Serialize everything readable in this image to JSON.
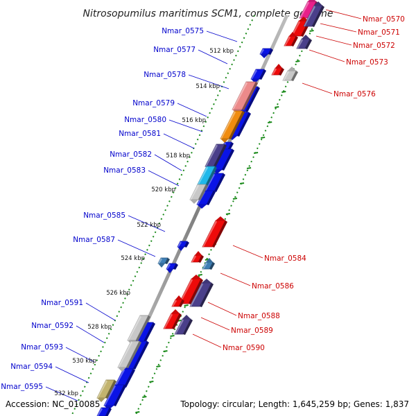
{
  "header": {
    "title": "Nitrosopumilus maritimus SCM1, complete genome"
  },
  "footer": {
    "accession": "Accession: NC_010085",
    "topology": "Topology: circular; Length: 1,645,259 bp; Genes: 1,837"
  },
  "scale_labels": [
    "512 kbp",
    "514 kbp",
    "516 kbp",
    "518 kbp",
    "520 kbp",
    "522 kbp",
    "524 kbp",
    "526 kbp",
    "528 kbp",
    "530 kbp",
    "532 kbp"
  ],
  "genes_forward": [
    "Nmar_0575",
    "Nmar_0577",
    "Nmar_0578",
    "Nmar_0579",
    "Nmar_0580",
    "Nmar_0581",
    "Nmar_0582",
    "Nmar_0583",
    "Nmar_0585",
    "Nmar_0587",
    "Nmar_0591",
    "Nmar_0592",
    "Nmar_0593",
    "Nmar_0594",
    "Nmar_0595"
  ],
  "genes_reverse": [
    "Nmar_0570",
    "Nmar_0571",
    "Nmar_0572",
    "Nmar_0573",
    "Nmar_0576",
    "Nmar_0584",
    "Nmar_0586",
    "Nmar_0588",
    "Nmar_0589",
    "Nmar_0590"
  ],
  "colors": {
    "forward_label": "#0000cc",
    "reverse_label": "#cc0000",
    "gene_blue": "#0a14e6",
    "gene_red": "#ee0a0a",
    "gene_purple": "#4a3f8a",
    "gene_pink": "#ec8a8a",
    "gene_orange": "#f08c10",
    "gene_cyan": "#1fb8ea",
    "gene_gray": "#c8c8c8",
    "gene_steel": "#3f7fb5",
    "gene_olive": "#c2b36e",
    "gene_magenta": "#e8208a",
    "axis": "#888888",
    "ticks": "#1a8a1a"
  }
}
